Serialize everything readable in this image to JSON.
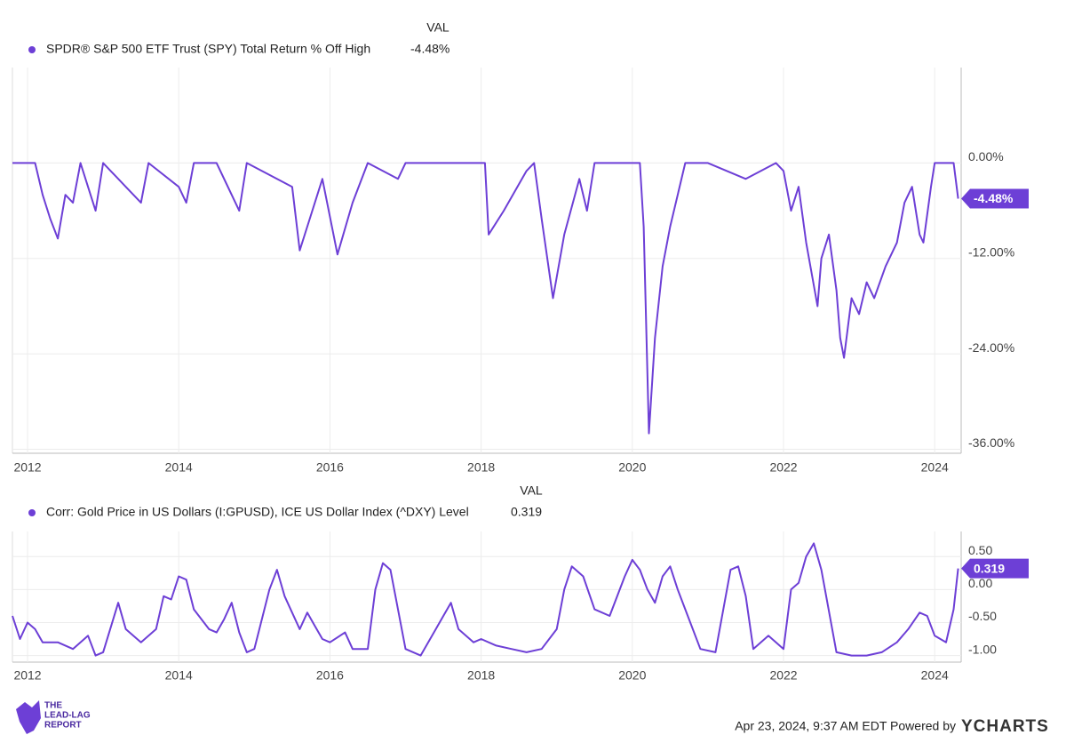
{
  "chart_data": [
    {
      "type": "line",
      "header": "VAL",
      "grid": true,
      "x": [
        2011.8,
        2012.1,
        2012.2,
        2012.3,
        2012.4,
        2012.5,
        2012.6,
        2012.7,
        2012.9,
        2013.0,
        2013.3,
        2013.5,
        2013.6,
        2014.0,
        2014.1,
        2014.2,
        2014.5,
        2014.7,
        2014.8,
        2014.9,
        2015.3,
        2015.5,
        2015.6,
        2015.7,
        2015.9,
        2016.1,
        2016.3,
        2016.5,
        2016.9,
        2017.0,
        2017.9,
        2018.05,
        2018.1,
        2018.3,
        2018.6,
        2018.7,
        2018.8,
        2018.95,
        2019.1,
        2019.3,
        2019.4,
        2019.5,
        2019.9,
        2020.1,
        2020.15,
        2020.22,
        2020.3,
        2020.4,
        2020.5,
        2020.7,
        2021.0,
        2021.5,
        2021.9,
        2022.0,
        2022.1,
        2022.2,
        2022.3,
        2022.45,
        2022.5,
        2022.6,
        2022.7,
        2022.75,
        2022.8,
        2022.9,
        2023.0,
        2023.1,
        2023.2,
        2023.35,
        2023.5,
        2023.6,
        2023.7,
        2023.8,
        2023.85,
        2023.95,
        2024.0,
        2024.25,
        2024.31
      ],
      "series": [
        {
          "name": "SPDR® S&P 500 ETF Trust (SPY) Total Return % Off High",
          "color": "#6d3fd6",
          "values": [
            0,
            0,
            -4,
            -7,
            -9.5,
            -4,
            -5,
            0,
            -6,
            0,
            -3,
            -5,
            0,
            -3,
            -5,
            0,
            0,
            -4,
            -6,
            0,
            -2,
            -3,
            -11,
            -8,
            -2,
            -11.5,
            -5,
            0,
            -2,
            0,
            0,
            0,
            -9,
            -6,
            -1,
            0,
            -7,
            -17,
            -9,
            -2,
            -6,
            0,
            0,
            0,
            -8,
            -34,
            -22,
            -13,
            -8,
            0,
            0,
            -2,
            0,
            -1,
            -6,
            -3,
            -10,
            -18,
            -12,
            -9,
            -16,
            -22,
            -24.5,
            -17,
            -19,
            -15,
            -17,
            -13,
            -10,
            -5,
            -3,
            -9,
            -10,
            -3,
            0,
            0,
            -4.48
          ],
          "current_label": "-4.48%"
        }
      ],
      "xlim": [
        2011.8,
        2024.35
      ],
      "xticks": [
        2012,
        2014,
        2016,
        2018,
        2020,
        2022,
        2024
      ],
      "ylim": [
        -36.5,
        12
      ],
      "yticks": [
        {
          "value": 0,
          "label": "0.00%"
        },
        {
          "value": -12,
          "label": "-12.00%"
        },
        {
          "value": -24,
          "label": "-24.00%"
        },
        {
          "value": -36,
          "label": "-36.00%"
        }
      ]
    },
    {
      "type": "line",
      "header": "VAL",
      "grid": true,
      "x": [
        2011.8,
        2011.9,
        2012.0,
        2012.1,
        2012.2,
        2012.4,
        2012.6,
        2012.8,
        2012.9,
        2013.0,
        2013.2,
        2013.3,
        2013.5,
        2013.7,
        2013.8,
        2013.9,
        2014.0,
        2014.1,
        2014.2,
        2014.4,
        2014.5,
        2014.6,
        2014.7,
        2014.8,
        2014.9,
        2015.0,
        2015.2,
        2015.3,
        2015.4,
        2015.6,
        2015.7,
        2015.8,
        2015.9,
        2016.0,
        2016.2,
        2016.3,
        2016.5,
        2016.6,
        2016.7,
        2016.8,
        2016.9,
        2017.0,
        2017.2,
        2017.4,
        2017.5,
        2017.6,
        2017.7,
        2017.9,
        2018.0,
        2018.2,
        2018.4,
        2018.6,
        2018.8,
        2019.0,
        2019.1,
        2019.2,
        2019.35,
        2019.5,
        2019.7,
        2019.9,
        2020.0,
        2020.1,
        2020.2,
        2020.3,
        2020.4,
        2020.5,
        2020.6,
        2020.7,
        2020.9,
        2021.1,
        2021.3,
        2021.4,
        2021.5,
        2021.6,
        2021.7,
        2021.8,
        2022.0,
        2022.1,
        2022.2,
        2022.3,
        2022.4,
        2022.5,
        2022.7,
        2022.9,
        2023.1,
        2023.3,
        2023.5,
        2023.65,
        2023.8,
        2023.9,
        2024.0,
        2024.15,
        2024.25,
        2024.31
      ],
      "series": [
        {
          "name": "Corr: Gold Price in US Dollars (I:GPUSD), ICE US Dollar Index (^DXY) Level",
          "color": "#6d3fd6",
          "values": [
            -0.4,
            -0.75,
            -0.5,
            -0.6,
            -0.8,
            -0.8,
            -0.9,
            -0.7,
            -1.0,
            -0.95,
            -0.2,
            -0.6,
            -0.8,
            -0.6,
            -0.1,
            -0.15,
            0.2,
            0.15,
            -0.3,
            -0.6,
            -0.65,
            -0.45,
            -0.2,
            -0.65,
            -0.95,
            -0.9,
            0.0,
            0.3,
            -0.1,
            -0.6,
            -0.35,
            -0.55,
            -0.75,
            -0.8,
            -0.65,
            -0.9,
            -0.9,
            0.0,
            0.4,
            0.3,
            -0.3,
            -0.9,
            -1.0,
            -0.6,
            -0.4,
            -0.2,
            -0.6,
            -0.8,
            -0.75,
            -0.85,
            -0.9,
            -0.95,
            -0.9,
            -0.6,
            0.0,
            0.35,
            0.2,
            -0.3,
            -0.4,
            0.2,
            0.45,
            0.3,
            0.0,
            -0.2,
            0.2,
            0.35,
            0.0,
            -0.3,
            -0.9,
            -0.95,
            0.3,
            0.35,
            -0.1,
            -0.9,
            -0.8,
            -0.7,
            -0.9,
            0.0,
            0.1,
            0.5,
            0.7,
            0.3,
            -0.95,
            -1.0,
            -1.0,
            -0.95,
            -0.8,
            -0.6,
            -0.35,
            -0.4,
            -0.7,
            -0.8,
            -0.3,
            0.319
          ],
          "current_label": "0.319"
        }
      ],
      "xlim": [
        2011.8,
        2024.35
      ],
      "xticks": [
        2012,
        2014,
        2016,
        2018,
        2020,
        2022,
        2024
      ],
      "ylim": [
        -1.1,
        0.88
      ],
      "yticks": [
        {
          "value": 0.5,
          "label": "0.50"
        },
        {
          "value": 0,
          "label": "0.00"
        },
        {
          "value": -0.5,
          "label": "-0.50"
        },
        {
          "value": -1,
          "label": "-1.00"
        }
      ]
    }
  ],
  "footer": {
    "timestamp": "Apr 23, 2024, 9:37 AM EDT Powered by",
    "brand": "YCHARTS",
    "logo": [
      "THE",
      "LEAD-LAG",
      "REPORT"
    ]
  }
}
